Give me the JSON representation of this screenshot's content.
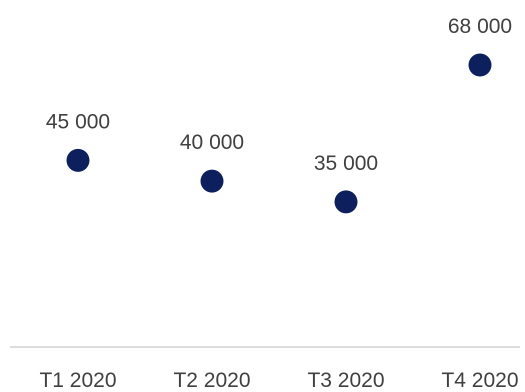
{
  "chart_data": {
    "type": "scatter",
    "categories": [
      "T1 2020",
      "T2 2020",
      "T3 2020",
      "T4 2020"
    ],
    "values": [
      45000,
      40000,
      35000,
      68000
    ],
    "data_labels": [
      "45 000",
      "40 000",
      "35 000",
      "68 000"
    ],
    "title": "",
    "xlabel": "",
    "ylabel": "",
    "ylim": [
      0,
      80000
    ],
    "grid": false,
    "legend": "none",
    "colors": {
      "marker": "#0d1f5c",
      "axis": "#d0d0d0",
      "text": "#404040"
    }
  }
}
